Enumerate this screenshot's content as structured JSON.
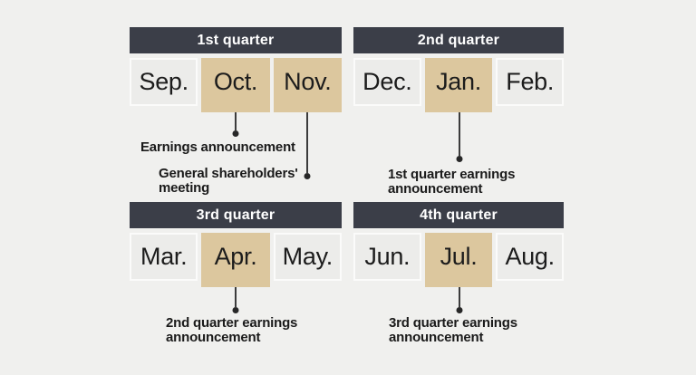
{
  "colors": {
    "background": "#f0f0ee",
    "quarter_header_bg": "#3b3e48",
    "quarter_header_text": "#ffffff",
    "month_cell_bg": "#ececea",
    "month_highlight_bg": "#dcc79e",
    "text": "#1c1c1c",
    "connector": "#3c3c3c"
  },
  "quarters": [
    {
      "label": "1st quarter",
      "months": [
        {
          "label": "Sep.",
          "highlighted": false
        },
        {
          "label": "Oct.",
          "highlighted": true
        },
        {
          "label": "Nov.",
          "highlighted": true
        }
      ]
    },
    {
      "label": "2nd quarter",
      "months": [
        {
          "label": "Dec.",
          "highlighted": false
        },
        {
          "label": "Jan.",
          "highlighted": true
        },
        {
          "label": "Feb.",
          "highlighted": false
        }
      ]
    },
    {
      "label": "3rd quarter",
      "months": [
        {
          "label": "Mar.",
          "highlighted": false
        },
        {
          "label": "Apr.",
          "highlighted": true
        },
        {
          "label": "May.",
          "highlighted": false
        }
      ]
    },
    {
      "label": "4th quarter",
      "months": [
        {
          "label": "Jun.",
          "highlighted": false
        },
        {
          "label": "Jul.",
          "highlighted": true
        },
        {
          "label": "Aug.",
          "highlighted": false
        }
      ]
    }
  ],
  "annotations": [
    {
      "text": "Earnings announcement",
      "from_month": "Oct."
    },
    {
      "text": "General shareholders' meeting",
      "from_month": "Nov."
    },
    {
      "text": "1st quarter earnings announcement",
      "from_month": "Jan."
    },
    {
      "text": "2nd quarter earnings announcement",
      "from_month": "Apr."
    },
    {
      "text": "3rd quarter earnings announcement",
      "from_month": "Jul."
    }
  ]
}
